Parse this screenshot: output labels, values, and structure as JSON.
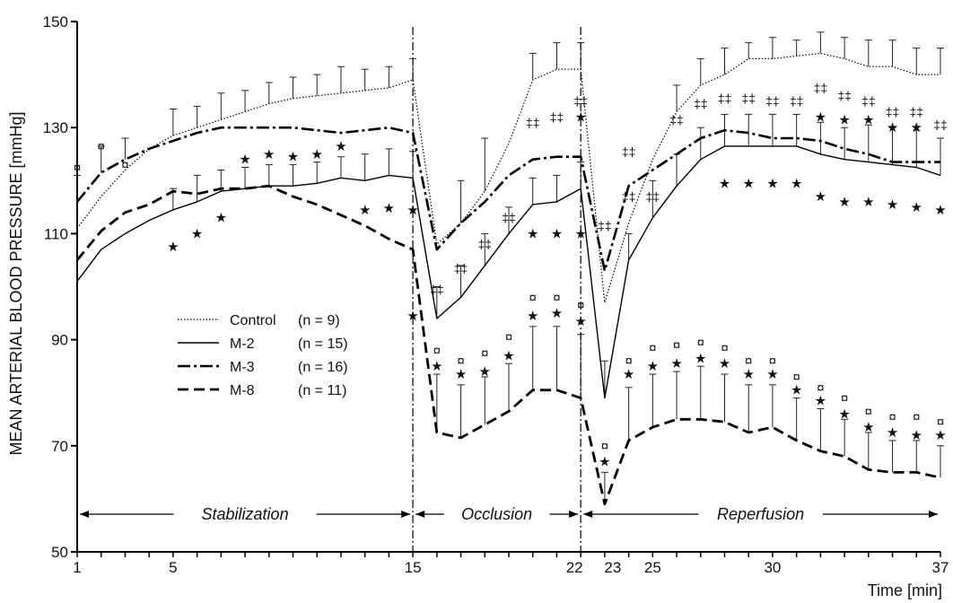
{
  "chart_data": {
    "type": "line",
    "title": "",
    "ylabel": "MEAN ARTERIAL BLOOD PRESSURE [mmHg]",
    "xlabel": "Time [min]",
    "xlim": [
      1,
      37
    ],
    "ylim": [
      50,
      150
    ],
    "x_ticks": [
      1,
      5,
      15,
      22,
      23,
      25,
      30,
      37
    ],
    "y_ticks": [
      50,
      70,
      90,
      110,
      130,
      150
    ],
    "grid": false,
    "legend_position": "center-left",
    "phase_dividers": [
      15,
      22
    ],
    "phases": [
      {
        "label": "Stabilization",
        "start": 1,
        "end": 15
      },
      {
        "label": "Occlusion",
        "start": 15,
        "end": 22
      },
      {
        "label": "Reperfusion",
        "start": 22,
        "end": 37
      }
    ],
    "series": [
      {
        "name": "Control",
        "n_label": "(n = 9)",
        "style": "dotted",
        "x": [
          1,
          2,
          3,
          4,
          5,
          6,
          7,
          8,
          9,
          10,
          11,
          12,
          13,
          14,
          15,
          16,
          17,
          18,
          19,
          20,
          21,
          22,
          23,
          24,
          25,
          26,
          27,
          28,
          29,
          30,
          31,
          32,
          33,
          34,
          35,
          36,
          37
        ],
        "values": [
          111,
          117,
          122,
          126,
          128.5,
          130,
          131.5,
          133,
          134.5,
          135.5,
          136,
          136.5,
          137,
          137.5,
          139,
          108,
          112,
          118,
          127,
          139,
          141,
          141,
          97,
          112,
          124,
          133,
          138,
          140,
          143,
          143,
          143.5,
          144,
          143,
          141.5,
          141.5,
          140,
          140
        ],
        "error": [
          0,
          0,
          0,
          0,
          5,
          4,
          5,
          4,
          4,
          4,
          4,
          5,
          4,
          4,
          4,
          0,
          8,
          10,
          0,
          5,
          5,
          5,
          0,
          0,
          0,
          5,
          5,
          5,
          3,
          4,
          3,
          4,
          4,
          5,
          5,
          5,
          5
        ]
      },
      {
        "name": "M-2",
        "n_label": "(n = 15)",
        "style": "solid",
        "x": [
          1,
          2,
          3,
          4,
          5,
          6,
          7,
          8,
          9,
          10,
          11,
          12,
          13,
          14,
          15,
          16,
          17,
          18,
          19,
          20,
          21,
          22,
          23,
          24,
          25,
          26,
          27,
          28,
          29,
          30,
          31,
          32,
          33,
          34,
          35,
          36,
          37
        ],
        "values": [
          101,
          107,
          110,
          112.5,
          114.5,
          116,
          118,
          118.5,
          119,
          119,
          119.5,
          120.5,
          120,
          121,
          120.5,
          94,
          98,
          104,
          110,
          115.5,
          116,
          118.5,
          79,
          105,
          113,
          119,
          124,
          126.5,
          126.5,
          126.5,
          126.5,
          125,
          124,
          123.5,
          123,
          122.5,
          121
        ],
        "error": [
          0,
          0,
          0,
          0,
          4,
          5,
          4,
          4,
          4,
          4,
          4,
          4,
          5,
          5,
          5,
          6,
          6,
          6,
          5,
          5,
          5,
          5,
          7,
          5,
          7,
          6,
          6,
          6,
          6,
          6,
          6,
          6,
          6,
          7,
          7,
          7,
          7
        ]
      },
      {
        "name": "M-3",
        "n_label": "(n = 16)",
        "style": "dashdot",
        "x": [
          1,
          2,
          3,
          4,
          5,
          6,
          7,
          8,
          9,
          10,
          11,
          12,
          13,
          14,
          15,
          16,
          17,
          18,
          19,
          20,
          21,
          22,
          23,
          24,
          25,
          26,
          27,
          28,
          29,
          30,
          31,
          32,
          33,
          34,
          35,
          36,
          37
        ],
        "values": [
          116,
          121.5,
          124,
          126,
          127.5,
          129,
          130,
          130,
          130,
          130,
          129.5,
          129,
          129.5,
          130,
          129,
          107,
          112,
          116,
          121,
          124,
          124.5,
          124.5,
          103,
          119,
          122,
          125,
          128,
          129.5,
          129,
          128,
          128,
          127.5,
          126,
          125,
          123.5,
          123.5,
          123.5
        ],
        "error": [
          5,
          5,
          4,
          0,
          0,
          0,
          0,
          0,
          0,
          0,
          0,
          0,
          0,
          0,
          0,
          0,
          0,
          0,
          0,
          0,
          0,
          0,
          0,
          0,
          0,
          0,
          0,
          0,
          0,
          0,
          0,
          0,
          0,
          0,
          0,
          0,
          0
        ]
      },
      {
        "name": "M-8",
        "n_label": "(n = 11)",
        "style": "dashed",
        "x": [
          1,
          2,
          3,
          4,
          5,
          6,
          7,
          8,
          9,
          10,
          11,
          12,
          13,
          14,
          15,
          16,
          17,
          18,
          19,
          20,
          21,
          22,
          23,
          24,
          25,
          26,
          27,
          28,
          29,
          30,
          31,
          32,
          33,
          34,
          35,
          36,
          37
        ],
        "values": [
          105,
          110.5,
          114,
          115.5,
          118,
          117.5,
          118.5,
          118.5,
          119,
          117,
          115.5,
          113.5,
          111.5,
          109,
          107,
          72.5,
          71.5,
          74,
          76.5,
          80.5,
          80.5,
          79,
          59,
          71,
          73.5,
          75,
          75,
          74.5,
          72.5,
          73.5,
          71,
          69,
          68,
          65.5,
          65,
          65,
          64
        ],
        "error": [
          0,
          0,
          0,
          0,
          0,
          0,
          0,
          0,
          0,
          0,
          0,
          0,
          0,
          0,
          0,
          11,
          10,
          9,
          9,
          12,
          12,
          12,
          6,
          10,
          10,
          9,
          10,
          9,
          9,
          8,
          8,
          8,
          7,
          7,
          6,
          6,
          6
        ]
      }
    ],
    "annotations": {
      "star": [
        {
          "x": 5,
          "y": 107.5
        },
        {
          "x": 6,
          "y": 110
        },
        {
          "x": 7,
          "y": 113
        },
        {
          "x": 8,
          "y": 124
        },
        {
          "x": 9,
          "y": 125
        },
        {
          "x": 10,
          "y": 124.5
        },
        {
          "x": 11,
          "y": 125
        },
        {
          "x": 12,
          "y": 126.5
        },
        {
          "x": 13,
          "y": 114.5
        },
        {
          "x": 14,
          "y": 114.8
        },
        {
          "x": 15,
          "y": 114.5
        },
        {
          "x": 15,
          "y": 94.5
        },
        {
          "x": 16,
          "y": 85
        },
        {
          "x": 17,
          "y": 83.5
        },
        {
          "x": 18,
          "y": 84
        },
        {
          "x": 19,
          "y": 87
        },
        {
          "x": 20,
          "y": 110
        },
        {
          "x": 20,
          "y": 94.5
        },
        {
          "x": 21,
          "y": 110
        },
        {
          "x": 21,
          "y": 95
        },
        {
          "x": 22,
          "y": 110
        },
        {
          "x": 22,
          "y": 93.5
        },
        {
          "x": 22,
          "y": 132
        },
        {
          "x": 23,
          "y": 67
        },
        {
          "x": 24,
          "y": 83.5
        },
        {
          "x": 25,
          "y": 85
        },
        {
          "x": 26,
          "y": 85.5
        },
        {
          "x": 27,
          "y": 86.5
        },
        {
          "x": 28,
          "y": 119.5
        },
        {
          "x": 28,
          "y": 85.5
        },
        {
          "x": 29,
          "y": 119.5
        },
        {
          "x": 29,
          "y": 83.5
        },
        {
          "x": 30,
          "y": 119.5
        },
        {
          "x": 30,
          "y": 83.5
        },
        {
          "x": 31,
          "y": 119.5
        },
        {
          "x": 31,
          "y": 80.5
        },
        {
          "x": 32,
          "y": 117
        },
        {
          "x": 32,
          "y": 132
        },
        {
          "x": 32,
          "y": 78.5
        },
        {
          "x": 33,
          "y": 116
        },
        {
          "x": 33,
          "y": 131.5
        },
        {
          "x": 33,
          "y": 76
        },
        {
          "x": 34,
          "y": 116
        },
        {
          "x": 34,
          "y": 131.5
        },
        {
          "x": 34,
          "y": 73.5
        },
        {
          "x": 35,
          "y": 115.5
        },
        {
          "x": 35,
          "y": 130
        },
        {
          "x": 35,
          "y": 72.5
        },
        {
          "x": 36,
          "y": 115
        },
        {
          "x": 36,
          "y": 130
        },
        {
          "x": 36,
          "y": 72
        },
        {
          "x": 37,
          "y": 114.5
        },
        {
          "x": 37,
          "y": 72
        }
      ],
      "currency": [
        {
          "x": 1,
          "y": 122.5
        },
        {
          "x": 2,
          "y": 126.5
        },
        {
          "x": 3,
          "y": 123
        },
        {
          "x": 16,
          "y": 88
        },
        {
          "x": 17,
          "y": 86
        },
        {
          "x": 18,
          "y": 87.5
        },
        {
          "x": 19,
          "y": 90.5
        },
        {
          "x": 20,
          "y": 98
        },
        {
          "x": 21,
          "y": 98
        },
        {
          "x": 22,
          "y": 96.5
        },
        {
          "x": 23,
          "y": 70
        },
        {
          "x": 24,
          "y": 86
        },
        {
          "x": 25,
          "y": 88.5
        },
        {
          "x": 26,
          "y": 89
        },
        {
          "x": 27,
          "y": 89.5
        },
        {
          "x": 28,
          "y": 88.5
        },
        {
          "x": 29,
          "y": 86
        },
        {
          "x": 30,
          "y": 86
        },
        {
          "x": 31,
          "y": 83
        },
        {
          "x": 32,
          "y": 81
        },
        {
          "x": 33,
          "y": 79
        },
        {
          "x": 34,
          "y": 76.5
        },
        {
          "x": 35,
          "y": 75.5
        },
        {
          "x": 36,
          "y": 75.5
        },
        {
          "x": 37,
          "y": 74.5
        }
      ],
      "dagger": [
        {
          "x": 16,
          "y": 99.5
        },
        {
          "x": 17,
          "y": 103.5
        },
        {
          "x": 18,
          "y": 108
        },
        {
          "x": 19,
          "y": 113
        },
        {
          "x": 20,
          "y": 131
        },
        {
          "x": 21,
          "y": 132
        },
        {
          "x": 22,
          "y": 135
        },
        {
          "x": 23,
          "y": 111.5
        },
        {
          "x": 24,
          "y": 125.5
        },
        {
          "x": 24,
          "y": 117
        },
        {
          "x": 25,
          "y": 117
        },
        {
          "x": 26,
          "y": 131.5
        },
        {
          "x": 27,
          "y": 134.5
        },
        {
          "x": 28,
          "y": 135.5
        },
        {
          "x": 29,
          "y": 135.5
        },
        {
          "x": 30,
          "y": 135
        },
        {
          "x": 31,
          "y": 135
        },
        {
          "x": 32,
          "y": 137.5
        },
        {
          "x": 33,
          "y": 136
        },
        {
          "x": 34,
          "y": 135
        },
        {
          "x": 35,
          "y": 133
        },
        {
          "x": 36,
          "y": 133
        },
        {
          "x": 37,
          "y": 130.5
        }
      ]
    }
  },
  "legend": [
    {
      "name": "Control",
      "n": "(n = 9)"
    },
    {
      "name": "M-2",
      "n": "(n = 15)"
    },
    {
      "name": "M-3",
      "n": "(n = 16)"
    },
    {
      "name": "M-8",
      "n": "(n = 11)"
    }
  ]
}
